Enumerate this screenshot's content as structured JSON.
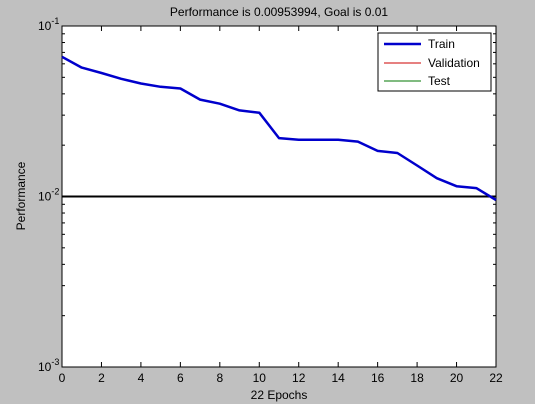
{
  "figure": {
    "background": "#c0c0c0"
  },
  "chart_data": {
    "type": "line",
    "title": "Performance is 0.00953994, Goal is 0.01",
    "xlabel": "22 Epochs",
    "ylabel": "Performance",
    "xlim": [
      0,
      22
    ],
    "ylim": [
      0.001,
      0.1
    ],
    "yscale": "log",
    "x_ticks": [
      0,
      2,
      4,
      6,
      8,
      10,
      12,
      14,
      16,
      18,
      20,
      22
    ],
    "y_ticks": [
      {
        "value": 0.1,
        "base": "10",
        "exp": "-1"
      },
      {
        "value": 0.01,
        "base": "10",
        "exp": "-2"
      },
      {
        "value": 0.001,
        "base": "10",
        "exp": "-3"
      }
    ],
    "grid": false,
    "legend_position": "top-right",
    "goal": {
      "value": 0.01,
      "color": "#000000"
    },
    "series": [
      {
        "name": "Train",
        "color": "#0000cc",
        "x": [
          0,
          1,
          2,
          3,
          4,
          5,
          6,
          7,
          8,
          9,
          10,
          11,
          12,
          13,
          14,
          15,
          16,
          17,
          18,
          19,
          20,
          21,
          22
        ],
        "y": [
          0.066,
          0.057,
          0.053,
          0.049,
          0.046,
          0.044,
          0.043,
          0.037,
          0.035,
          0.032,
          0.031,
          0.022,
          0.0215,
          0.0215,
          0.0215,
          0.021,
          0.0185,
          0.018,
          0.0152,
          0.0128,
          0.0115,
          0.0112,
          0.00954
        ]
      },
      {
        "name": "Validation",
        "color": "#cc0000",
        "x": [],
        "y": []
      },
      {
        "name": "Test",
        "color": "#007700",
        "x": [],
        "y": []
      }
    ]
  }
}
